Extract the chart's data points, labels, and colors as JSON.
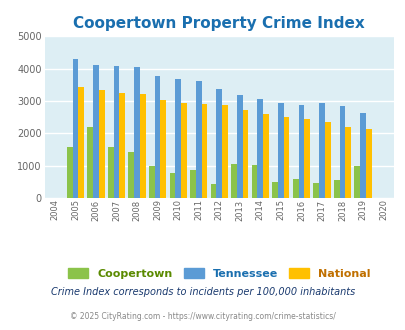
{
  "title": "Coopertown Property Crime Index",
  "years": [
    2004,
    2005,
    2006,
    2007,
    2008,
    2009,
    2010,
    2011,
    2012,
    2013,
    2014,
    2015,
    2016,
    2017,
    2018,
    2019,
    2020
  ],
  "coopertown": [
    0,
    1570,
    2200,
    1570,
    1420,
    1000,
    780,
    860,
    440,
    1060,
    1020,
    490,
    580,
    450,
    560,
    1000,
    0
  ],
  "tennessee": [
    0,
    4300,
    4100,
    4080,
    4040,
    3780,
    3680,
    3610,
    3380,
    3190,
    3060,
    2950,
    2880,
    2940,
    2840,
    2630,
    0
  ],
  "national": [
    0,
    3440,
    3340,
    3240,
    3220,
    3040,
    2940,
    2910,
    2870,
    2710,
    2600,
    2490,
    2450,
    2360,
    2190,
    2130,
    0
  ],
  "coopertown_color": "#8bc34a",
  "tennessee_color": "#5b9bd5",
  "national_color": "#ffc000",
  "bg_color": "#ddeef4",
  "ylim": [
    0,
    5000
  ],
  "title_fontsize": 11,
  "title_color": "#1a6faf",
  "footnote1": "Crime Index corresponds to incidents per 100,000 inhabitants",
  "footnote2": "© 2025 CityRating.com - https://www.cityrating.com/crime-statistics/",
  "legend_labels": [
    "Coopertown",
    "Tennessee",
    "National"
  ],
  "legend_label_colors": [
    "#5a8a00",
    "#1a6faf",
    "#c07000"
  ]
}
